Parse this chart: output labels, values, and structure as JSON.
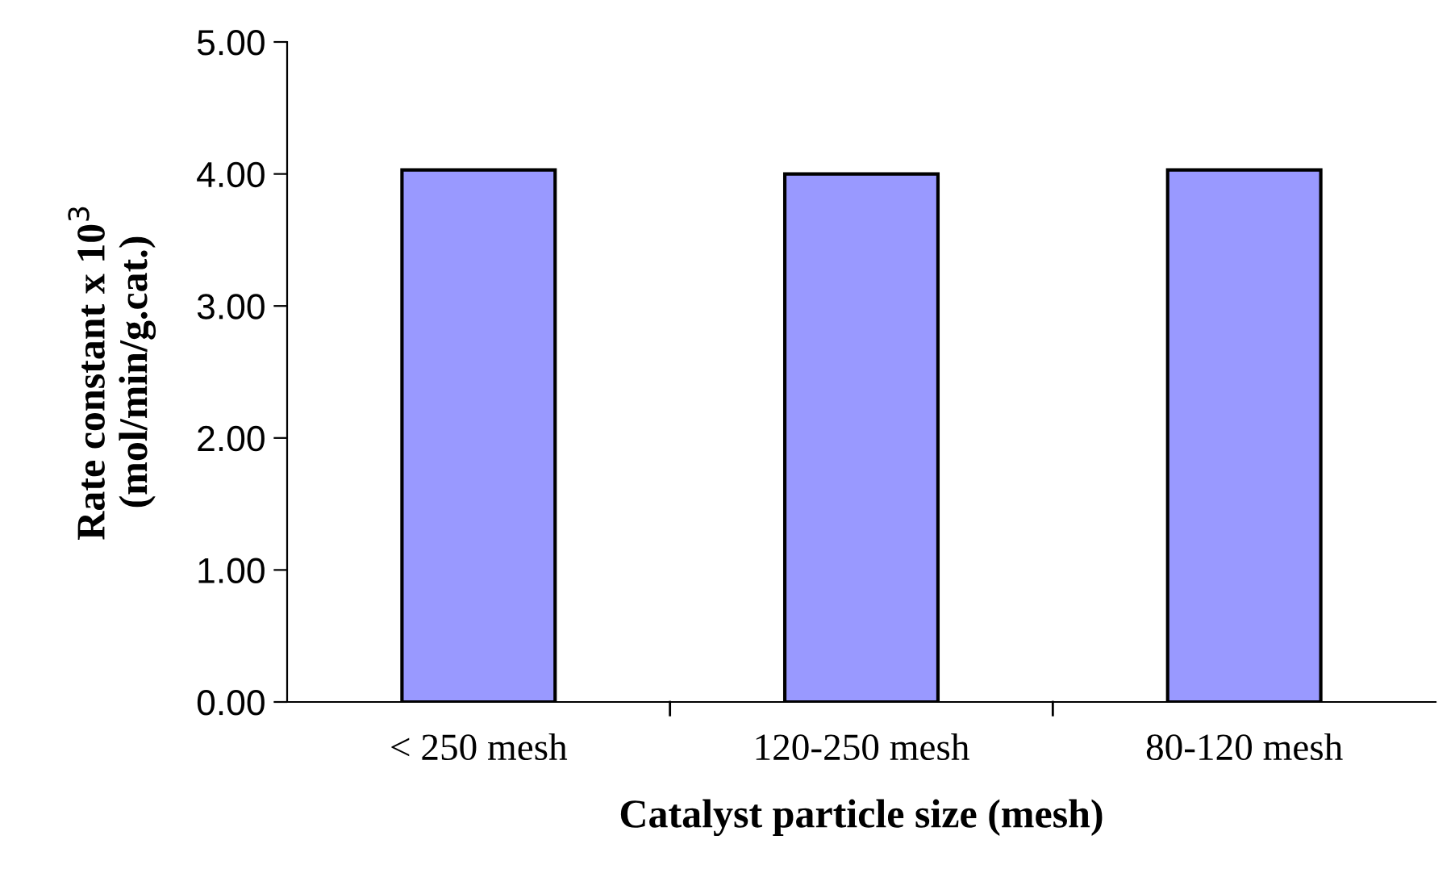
{
  "chart_data": {
    "type": "bar",
    "xlabel": "Catalyst particle size (mesh)",
    "ylabel": "Rate constant x 10$^{3}$\n(mol/min/g.cat.)",
    "categories": [
      "< 250 mesh",
      "120-250 mesh",
      "80-120 mesh"
    ],
    "values": [
      4.03,
      4.0,
      4.03
    ],
    "color": "#9999ff",
    "ylim": [
      0,
      5
    ],
    "yticks": [
      {
        "value": 0,
        "label": "0.00"
      },
      {
        "value": 1,
        "label": "1.00"
      },
      {
        "value": 2,
        "label": "2.00"
      },
      {
        "value": 3,
        "label": "3.00"
      },
      {
        "value": 4,
        "label": "4.00"
      },
      {
        "value": 5,
        "label": "5.00"
      }
    ],
    "grid": false,
    "legend": false
  }
}
